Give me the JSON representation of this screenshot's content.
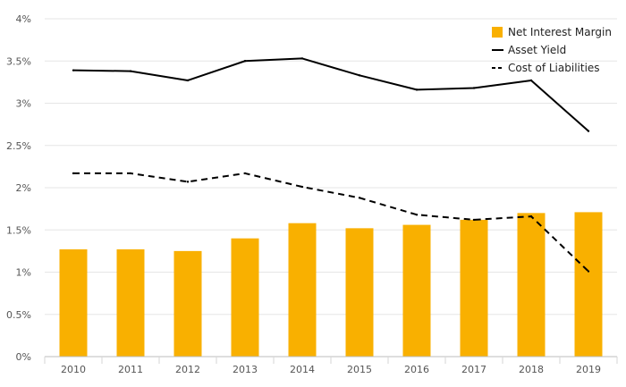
{
  "chart_data": {
    "type": "bar",
    "title": "",
    "xlabel": "",
    "ylabel": "",
    "categories": [
      "2010",
      "2011",
      "2012",
      "2013",
      "2014",
      "2015",
      "2016",
      "2017",
      "2018",
      "2019"
    ],
    "ylim": [
      0,
      4
    ],
    "y_ticks": [
      {
        "value": 0,
        "label": "0%"
      },
      {
        "value": 0.5,
        "label": "0.5%"
      },
      {
        "value": 1,
        "label": "1%"
      },
      {
        "value": 1.5,
        "label": "1.5%"
      },
      {
        "value": 2,
        "label": "2%"
      },
      {
        "value": 2.5,
        "label": "2.5%"
      },
      {
        "value": 3,
        "label": "3%"
      },
      {
        "value": 3.5,
        "label": "3.5%"
      },
      {
        "value": 4,
        "label": "4%"
      }
    ],
    "grid": true,
    "legend_position": "top-right",
    "series": [
      {
        "name": "Net Interest Margin",
        "type": "bar",
        "color": "#f9b000",
        "values": [
          1.27,
          1.27,
          1.25,
          1.4,
          1.58,
          1.52,
          1.56,
          1.62,
          1.7,
          1.71
        ]
      },
      {
        "name": "Asset Yield",
        "type": "line",
        "style": "solid",
        "color": "#000000",
        "values": [
          3.39,
          3.38,
          3.27,
          3.5,
          3.53,
          3.33,
          3.16,
          3.18,
          3.27,
          2.67
        ]
      },
      {
        "name": "Cost of Liabilities",
        "type": "line",
        "style": "dashed",
        "color": "#000000",
        "values": [
          2.17,
          2.17,
          2.07,
          2.17,
          2.01,
          1.88,
          1.68,
          1.62,
          1.66,
          1.01
        ]
      }
    ]
  }
}
